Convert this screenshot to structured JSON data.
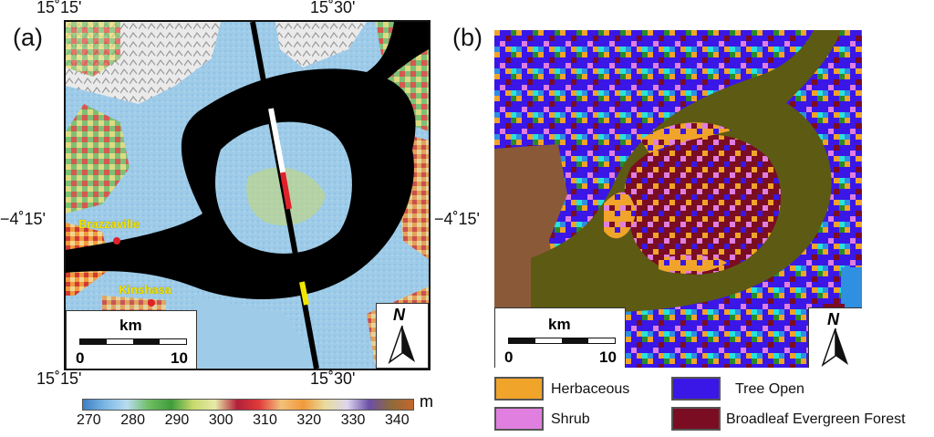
{
  "panel_a": {
    "label": "(a)",
    "coords": {
      "top_left": "15˚15'",
      "top_right": "15˚30'",
      "bottom_left": "15˚15'",
      "bottom_right": "15˚30'",
      "left_lat": "−4˚15'"
    },
    "cities": [
      {
        "name": "Brazzaville"
      },
      {
        "name": "Kinshasa"
      }
    ],
    "scale": {
      "unit": "km",
      "start": "0",
      "end": "10"
    },
    "north_label": "N",
    "colorbar": {
      "unit": "m",
      "ticks": [
        "270",
        "280",
        "290",
        "300",
        "310",
        "320",
        "330",
        "340"
      ],
      "colors": [
        "#3d7fc4",
        "#7cb7e4",
        "#b8dcef",
        "#6fbd63",
        "#3f9d3c",
        "#c7d96d",
        "#e7e9a8",
        "#b3203a",
        "#e03a3a",
        "#f1c17a",
        "#f19a3a",
        "#e7db9c",
        "#ded6ee",
        "#6a4fa7",
        "#8e6a3a",
        "#c4672e"
      ]
    }
  },
  "panel_b": {
    "label": "(b)",
    "coords": {
      "right_lat": "−4˚15'"
    },
    "scale": {
      "unit": "km",
      "start": "0",
      "end": "10"
    },
    "north_label": "N",
    "legend": [
      {
        "label": "Herbaceous",
        "color": "#f0a42a"
      },
      {
        "label": "Tree Open",
        "color": "#3a17e6"
      },
      {
        "label": "Shrub",
        "color": "#e07fe0"
      },
      {
        "label": "Broadleaf Evergreen Forest",
        "color": "#7a0d22"
      }
    ],
    "classes_colors": {
      "river": "#5d5a14",
      "bare_left": "#8a5a38",
      "cyan": "#27e3de",
      "blue": "#2f8fe0",
      "green": "#2a8a2a"
    }
  }
}
